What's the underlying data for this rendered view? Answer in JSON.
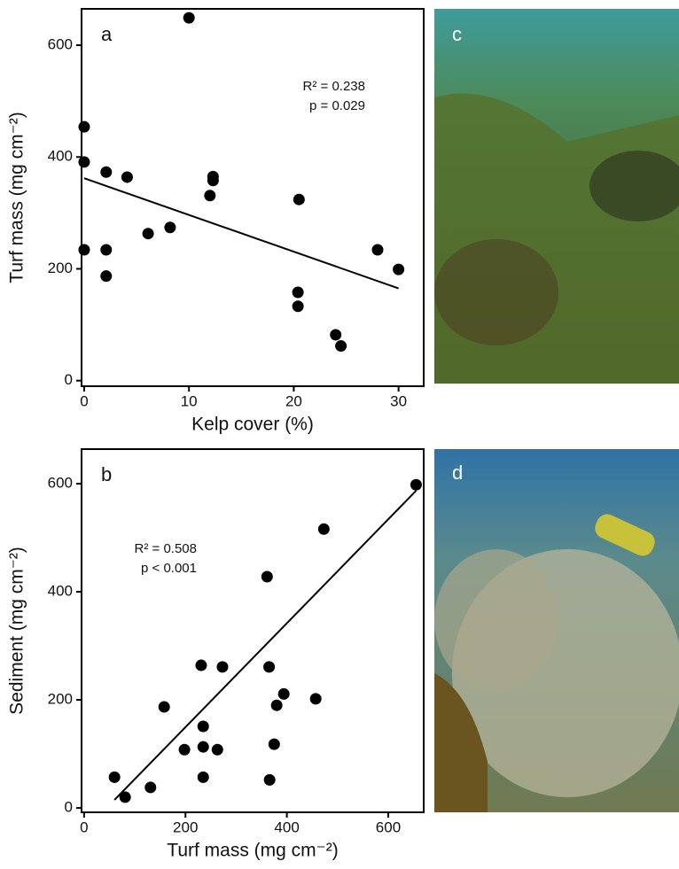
{
  "chart_data": [
    {
      "type": "scatter",
      "panel": "a",
      "xlabel": "Kelp cover (%)",
      "ylabel": "Turf mass (mg cm⁻²)",
      "annotations": [
        "R² = 0.238",
        "p = 0.029"
      ],
      "color": "#000000",
      "x": [
        10,
        0,
        0,
        2.1,
        4.1,
        12.3,
        12.3,
        12,
        20.5,
        0,
        2.1,
        2.1,
        6.1,
        8.2,
        20.4,
        20.4,
        28,
        30,
        24,
        24.5
      ],
      "y": [
        649,
        454,
        391,
        373,
        364,
        365,
        358,
        331,
        324,
        234,
        234,
        187,
        263,
        274,
        158,
        133,
        234,
        199,
        82,
        62
      ],
      "fit": {
        "x": [
          0,
          30
        ],
        "y": [
          362,
          165
        ]
      },
      "xlim": [
        -0.25,
        32.4
      ],
      "ylim": [
        -10,
        665
      ],
      "xticks": [
        0,
        10,
        20,
        30
      ],
      "yticks": [
        0,
        200,
        400,
        600
      ]
    },
    {
      "type": "scatter",
      "panel": "b",
      "xlabel": "Turf mass (mg cm⁻²)",
      "ylabel": "Sediment (mg cm⁻²)",
      "annotations": [
        "R² = 0.508",
        "p < 0.001"
      ],
      "color": "#000000",
      "x": [
        655,
        473,
        361,
        365,
        231,
        273,
        394,
        457,
        158,
        380,
        235,
        198,
        235,
        263,
        375,
        235,
        366,
        60,
        131,
        81
      ],
      "y": [
        598,
        516,
        428,
        261,
        264,
        261,
        211,
        202,
        187,
        190,
        151,
        108,
        113,
        108,
        118,
        57,
        52,
        57,
        38,
        20
      ],
      "fit": {
        "x": [
          60,
          655
        ],
        "y": [
          15,
          587
        ]
      },
      "xlim": [
        -5,
        670
      ],
      "ylim": [
        -8,
        664
      ],
      "xticks": [
        0,
        200,
        400,
        600
      ],
      "yticks": [
        0,
        200,
        400,
        600
      ]
    }
  ],
  "photos": [
    {
      "label": "c"
    },
    {
      "label": "d"
    }
  ]
}
